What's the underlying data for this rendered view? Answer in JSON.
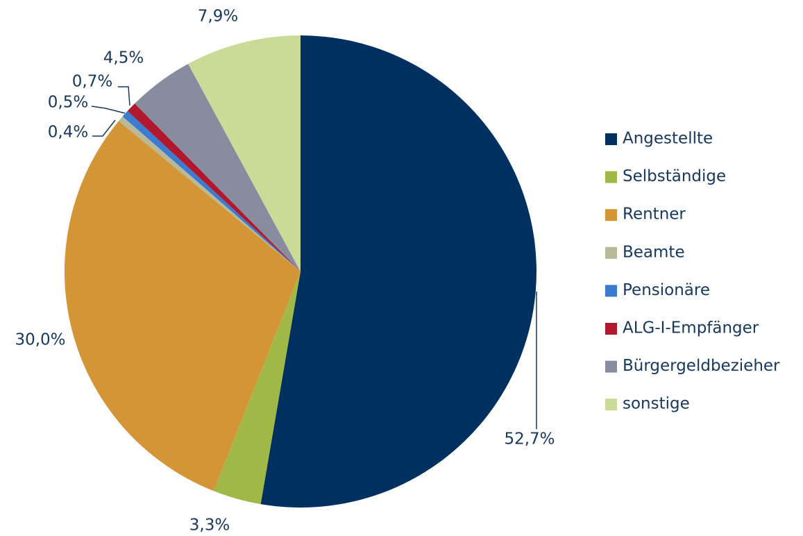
{
  "chart_data": {
    "type": "pie",
    "categories": [
      "Angestellte",
      "Selbständige",
      "Rentner",
      "Beamte",
      "Pensionäre",
      "ALG-I-Empfänger",
      "Bürgergeldbezieher",
      "sonstige"
    ],
    "values": [
      52.7,
      3.3,
      30.0,
      0.4,
      0.5,
      0.7,
      4.5,
      7.9
    ],
    "value_labels": [
      "52,7%",
      "3,3%",
      "30,0%",
      "0,4%",
      "0,5%",
      "0,7%",
      "4,5%",
      "7,9%"
    ],
    "colors": [
      "#003060",
      "#a0b946",
      "#d39536",
      "#b8b998",
      "#3b7bd2",
      "#b0182e",
      "#878d9e",
      "#c8dc97"
    ],
    "legend": "right"
  }
}
